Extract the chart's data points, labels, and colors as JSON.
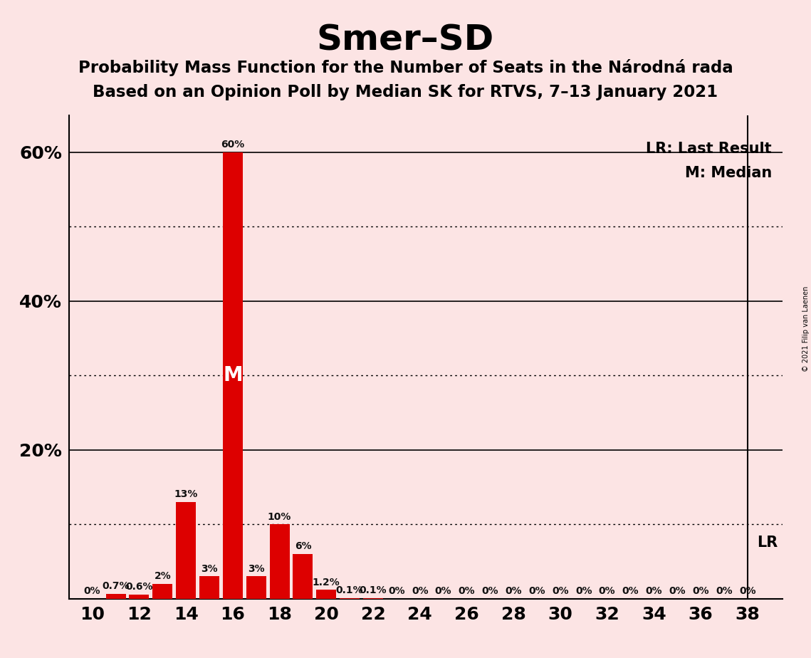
{
  "title": "Smer–SD",
  "subtitle1": "Probability Mass Function for the Number of Seats in the Národná rada",
  "subtitle2": "Based on an Opinion Poll by Median SK for RTVS, 7–13 January 2021",
  "copyright": "© 2021 Filip van Laenen",
  "seats": [
    10,
    11,
    12,
    13,
    14,
    15,
    16,
    17,
    18,
    19,
    20,
    21,
    22,
    23,
    24,
    25,
    26,
    27,
    28,
    29,
    30,
    31,
    32,
    33,
    34,
    35,
    36,
    37,
    38
  ],
  "probabilities": [
    0.0,
    0.7,
    0.6,
    2.0,
    13.0,
    3.0,
    60.0,
    3.0,
    10.0,
    6.0,
    1.2,
    0.1,
    0.1,
    0.0,
    0.0,
    0.0,
    0.0,
    0.0,
    0.0,
    0.0,
    0.0,
    0.0,
    0.0,
    0.0,
    0.0,
    0.0,
    0.0,
    0.0,
    0.0
  ],
  "bar_color": "#dd0000",
  "bg_color": "#fce4e4",
  "median_seat": 16,
  "lr_seat": 38,
  "solid_lines": [
    20,
    40,
    60
  ],
  "dotted_lines": [
    10,
    30,
    50
  ],
  "ytick_labels": [
    20,
    40,
    60
  ],
  "xtick_positions": [
    10,
    12,
    14,
    16,
    18,
    20,
    22,
    24,
    26,
    28,
    30,
    32,
    34,
    36,
    38
  ],
  "xmin": 9,
  "xmax": 39.5,
  "ymin": 0,
  "ymax": 65,
  "lr_label": "LR",
  "lr_legend": "LR: Last Result",
  "m_legend": "M: Median",
  "legend_fontsize": 15,
  "title_fontsize": 36,
  "subtitle_fontsize": 16.5,
  "bar_label_fontsize": 10,
  "axis_tick_fontsize": 18,
  "copyright_fontsize": 7,
  "m_label_fontsize": 20
}
